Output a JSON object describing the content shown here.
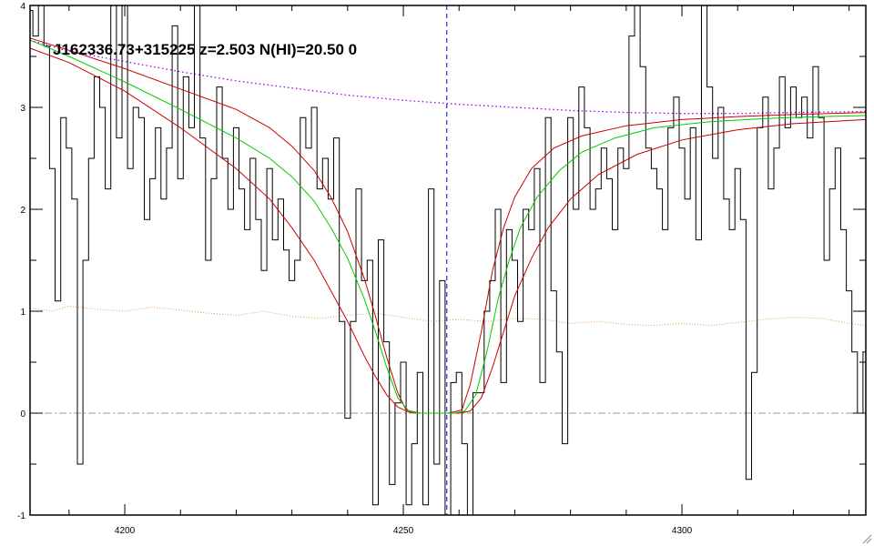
{
  "chart_data": {
    "type": "line",
    "title": "J162336.73+315225 z=2.503 N(HI)=20.50 0",
    "xlabel": "",
    "ylabel": "",
    "xlim": [
      4183,
      4333
    ],
    "ylim": [
      -1,
      4
    ],
    "x_ticks": [
      4200,
      4250,
      4300
    ],
    "y_ticks": [
      -1,
      0,
      1,
      2,
      3,
      4
    ],
    "grid": false,
    "line_center": 4257.8,
    "zero_level": 0,
    "flux_steps": [
      [
        4183.0,
        3.95
      ],
      [
        4184.0,
        3.7
      ],
      [
        4185.0,
        4.0
      ],
      [
        4186.0,
        3.6
      ],
      [
        4187.0,
        2.4
      ],
      [
        4188.0,
        1.1
      ],
      [
        4189.0,
        2.9
      ],
      [
        4190.0,
        2.6
      ],
      [
        4191.0,
        2.1
      ],
      [
        4192.0,
        -0.5
      ],
      [
        4193.0,
        1.5
      ],
      [
        4194.0,
        2.5
      ],
      [
        4195.0,
        3.3
      ],
      [
        4196.0,
        3.0
      ],
      [
        4197.0,
        2.2
      ],
      [
        4198.0,
        4.0
      ],
      [
        4199.0,
        2.7
      ],
      [
        4200.0,
        4.0
      ],
      [
        4201.0,
        2.4
      ],
      [
        4202.0,
        3.0
      ],
      [
        4203.0,
        2.9
      ],
      [
        4204.0,
        1.9
      ],
      [
        4205.0,
        2.3
      ],
      [
        4206.0,
        2.8
      ],
      [
        4207.0,
        2.1
      ],
      [
        4208.0,
        2.6
      ],
      [
        4209.0,
        3.8
      ],
      [
        4210.0,
        2.3
      ],
      [
        4211.0,
        3.3
      ],
      [
        4212.0,
        2.8
      ],
      [
        4213.0,
        4.0
      ],
      [
        4214.0,
        2.7
      ],
      [
        4215.0,
        1.5
      ],
      [
        4216.0,
        2.3
      ],
      [
        4217.0,
        3.2
      ],
      [
        4218.0,
        2.5
      ],
      [
        4219.0,
        2.0
      ],
      [
        4220.0,
        2.8
      ],
      [
        4221.0,
        2.2
      ],
      [
        4222.0,
        1.8
      ],
      [
        4223.0,
        2.5
      ],
      [
        4224.0,
        1.9
      ],
      [
        4225.0,
        1.4
      ],
      [
        4226.0,
        2.4
      ],
      [
        4227.0,
        1.7
      ],
      [
        4228.0,
        2.1
      ],
      [
        4229.0,
        1.6
      ],
      [
        4230.0,
        1.3
      ],
      [
        4231.0,
        1.5
      ],
      [
        4232.0,
        2.9
      ],
      [
        4233.0,
        2.6
      ],
      [
        4234.0,
        3.0
      ],
      [
        4235.0,
        2.2
      ],
      [
        4236.0,
        2.5
      ],
      [
        4237.0,
        2.1
      ],
      [
        4238.0,
        2.7
      ],
      [
        4239.0,
        0.9
      ],
      [
        4240.0,
        -0.05
      ],
      [
        4241.0,
        0.9
      ],
      [
        4242.0,
        2.2
      ],
      [
        4243.0,
        1.3
      ],
      [
        4244.0,
        1.5
      ],
      [
        4245.0,
        -0.9
      ],
      [
        4246.0,
        1.7
      ],
      [
        4247.0,
        0.7
      ],
      [
        4248.0,
        -0.7
      ],
      [
        4249.0,
        0.1
      ],
      [
        4250.0,
        0.5
      ],
      [
        4251.0,
        -0.9
      ],
      [
        4252.0,
        -0.3
      ],
      [
        4253.0,
        0.4
      ],
      [
        4254.0,
        -0.9
      ],
      [
        4255.0,
        2.2
      ],
      [
        4256.0,
        -0.5
      ],
      [
        4257.0,
        1.3
      ],
      [
        4258.0,
        -1.0
      ],
      [
        4259.0,
        0.3
      ],
      [
        4260.0,
        0.4
      ],
      [
        4261.0,
        -0.3
      ],
      [
        4262.0,
        -1.0
      ],
      [
        4263.0,
        0.2
      ],
      [
        4264.0,
        0.2
      ],
      [
        4265.0,
        1.0
      ],
      [
        4266.0,
        1.3
      ],
      [
        4267.0,
        2.0
      ],
      [
        4268.0,
        0.3
      ],
      [
        4269.0,
        1.8
      ],
      [
        4270.0,
        1.5
      ],
      [
        4271.0,
        0.9
      ],
      [
        4272.0,
        2.0
      ],
      [
        4273.0,
        1.8
      ],
      [
        4274.0,
        2.4
      ],
      [
        4275.0,
        0.3
      ],
      [
        4276.0,
        2.9
      ],
      [
        4277.0,
        1.2
      ],
      [
        4278.0,
        0.6
      ],
      [
        4279.0,
        -0.3
      ],
      [
        4280.0,
        2.9
      ],
      [
        4281.0,
        2.0
      ],
      [
        4282.0,
        3.2
      ],
      [
        4283.0,
        2.8
      ],
      [
        4284.0,
        2.0
      ],
      [
        4285.0,
        2.2
      ],
      [
        4286.0,
        2.6
      ],
      [
        4287.0,
        2.3
      ],
      [
        4288.0,
        1.8
      ],
      [
        4289.0,
        2.6
      ],
      [
        4290.0,
        2.4
      ],
      [
        4291.0,
        3.7
      ],
      [
        4292.0,
        4.0
      ],
      [
        4293.0,
        3.4
      ],
      [
        4294.0,
        2.6
      ],
      [
        4295.0,
        2.4
      ],
      [
        4296.0,
        2.2
      ],
      [
        4297.0,
        1.8
      ],
      [
        4298.0,
        2.8
      ],
      [
        4299.0,
        3.1
      ],
      [
        4300.0,
        2.6
      ],
      [
        4301.0,
        2.1
      ],
      [
        4302.0,
        2.8
      ],
      [
        4303.0,
        1.7
      ],
      [
        4304.0,
        4.0
      ],
      [
        4305.0,
        3.2
      ],
      [
        4306.0,
        2.5
      ],
      [
        4307.0,
        3.0
      ],
      [
        4308.0,
        2.1
      ],
      [
        4309.0,
        1.8
      ],
      [
        4310.0,
        2.4
      ],
      [
        4311.0,
        1.9
      ],
      [
        4312.0,
        -0.65
      ],
      [
        4313.0,
        0.4
      ],
      [
        4314.0,
        2.8
      ],
      [
        4315.0,
        3.1
      ],
      [
        4316.0,
        2.2
      ],
      [
        4317.0,
        2.6
      ],
      [
        4318.0,
        3.3
      ],
      [
        4319.0,
        2.8
      ],
      [
        4320.0,
        3.2
      ],
      [
        4321.0,
        2.9
      ],
      [
        4322.0,
        3.1
      ],
      [
        4323.0,
        2.7
      ],
      [
        4324.0,
        3.4
      ],
      [
        4325.0,
        2.9
      ],
      [
        4326.0,
        1.5
      ],
      [
        4327.0,
        2.2
      ],
      [
        4328.0,
        2.6
      ],
      [
        4329.0,
        1.8
      ],
      [
        4330.0,
        1.2
      ],
      [
        4331.0,
        0.6
      ],
      [
        4332.0,
        0.0
      ],
      [
        4333.0,
        0.6
      ]
    ],
    "model_best": [
      [
        4183,
        3.66
      ],
      [
        4190,
        3.5
      ],
      [
        4200,
        3.25
      ],
      [
        4210,
        2.98
      ],
      [
        4220,
        2.7
      ],
      [
        4226,
        2.5
      ],
      [
        4230,
        2.32
      ],
      [
        4234,
        2.08
      ],
      [
        4237,
        1.82
      ],
      [
        4240,
        1.52
      ],
      [
        4243,
        1.12
      ],
      [
        4245,
        0.8
      ],
      [
        4247,
        0.45
      ],
      [
        4249,
        0.15
      ],
      [
        4251,
        0.02
      ],
      [
        4253,
        0.0
      ],
      [
        4256,
        0.0
      ],
      [
        4259,
        0.0
      ],
      [
        4261,
        0.02
      ],
      [
        4263,
        0.18
      ],
      [
        4265,
        0.6
      ],
      [
        4267,
        1.12
      ],
      [
        4269,
        1.5
      ],
      [
        4271,
        1.82
      ],
      [
        4274,
        2.12
      ],
      [
        4278,
        2.38
      ],
      [
        4282,
        2.56
      ],
      [
        4288,
        2.7
      ],
      [
        4295,
        2.8
      ],
      [
        4305,
        2.86
      ],
      [
        4315,
        2.89
      ],
      [
        4325,
        2.91
      ],
      [
        4333,
        2.92
      ]
    ],
    "model_upper": [
      [
        4183,
        3.68
      ],
      [
        4190,
        3.56
      ],
      [
        4200,
        3.38
      ],
      [
        4210,
        3.18
      ],
      [
        4220,
        2.98
      ],
      [
        4226,
        2.8
      ],
      [
        4230,
        2.62
      ],
      [
        4234,
        2.38
      ],
      [
        4237,
        2.12
      ],
      [
        4240,
        1.78
      ],
      [
        4243,
        1.32
      ],
      [
        4245,
        0.95
      ],
      [
        4247,
        0.55
      ],
      [
        4249,
        0.2
      ],
      [
        4250.5,
        0.03
      ],
      [
        4253,
        0.0
      ],
      [
        4258,
        0.0
      ],
      [
        4260.5,
        0.03
      ],
      [
        4262,
        0.28
      ],
      [
        4264,
        0.8
      ],
      [
        4266,
        1.4
      ],
      [
        4268,
        1.82
      ],
      [
        4270,
        2.12
      ],
      [
        4273,
        2.4
      ],
      [
        4277,
        2.6
      ],
      [
        4282,
        2.72
      ],
      [
        4290,
        2.82
      ],
      [
        4300,
        2.88
      ],
      [
        4310,
        2.91
      ],
      [
        4320,
        2.93
      ],
      [
        4333,
        2.95
      ]
    ],
    "model_lower": [
      [
        4183,
        3.58
      ],
      [
        4190,
        3.44
      ],
      [
        4200,
        3.16
      ],
      [
        4210,
        2.8
      ],
      [
        4220,
        2.4
      ],
      [
        4226,
        2.1
      ],
      [
        4230,
        1.82
      ],
      [
        4234,
        1.5
      ],
      [
        4237,
        1.2
      ],
      [
        4240,
        0.9
      ],
      [
        4243,
        0.56
      ],
      [
        4245,
        0.36
      ],
      [
        4247,
        0.18
      ],
      [
        4249,
        0.06
      ],
      [
        4251,
        0.01
      ],
      [
        4253,
        0.0
      ],
      [
        4260,
        0.0
      ],
      [
        4262,
        0.02
      ],
      [
        4264,
        0.15
      ],
      [
        4266,
        0.45
      ],
      [
        4268,
        0.8
      ],
      [
        4270,
        1.15
      ],
      [
        4273,
        1.52
      ],
      [
        4276,
        1.82
      ],
      [
        4280,
        2.1
      ],
      [
        4285,
        2.34
      ],
      [
        4292,
        2.54
      ],
      [
        4300,
        2.68
      ],
      [
        4310,
        2.78
      ],
      [
        4320,
        2.84
      ],
      [
        4333,
        2.88
      ]
    ],
    "continuum": [
      [
        4183,
        3.66
      ],
      [
        4190,
        3.55
      ],
      [
        4200,
        3.45
      ],
      [
        4210,
        3.35
      ],
      [
        4220,
        3.26
      ],
      [
        4230,
        3.19
      ],
      [
        4240,
        3.12
      ],
      [
        4250,
        3.07
      ],
      [
        4260,
        3.03
      ],
      [
        4270,
        3.0
      ],
      [
        4280,
        2.97
      ],
      [
        4290,
        2.95
      ],
      [
        4300,
        2.94
      ],
      [
        4310,
        2.94
      ],
      [
        4320,
        2.95
      ],
      [
        4333,
        2.96
      ]
    ],
    "error_level": [
      [
        4183,
        1.03
      ],
      [
        4187,
        1.0
      ],
      [
        4190,
        1.05
      ],
      [
        4195,
        1.02
      ],
      [
        4200,
        1.0
      ],
      [
        4205,
        1.04
      ],
      [
        4210,
        1.01
      ],
      [
        4215,
        0.98
      ],
      [
        4220,
        0.96
      ],
      [
        4225,
        1.0
      ],
      [
        4230,
        0.95
      ],
      [
        4235,
        0.93
      ],
      [
        4240,
        0.96
      ],
      [
        4245,
        0.98
      ],
      [
        4250,
        0.94
      ],
      [
        4255,
        0.9
      ],
      [
        4260,
        0.92
      ],
      [
        4265,
        0.9
      ],
      [
        4270,
        0.93
      ],
      [
        4275,
        0.92
      ],
      [
        4280,
        0.88
      ],
      [
        4285,
        0.9
      ],
      [
        4290,
        0.87
      ],
      [
        4295,
        0.86
      ],
      [
        4300,
        0.88
      ],
      [
        4305,
        0.86
      ],
      [
        4310,
        0.89
      ],
      [
        4315,
        0.92
      ],
      [
        4320,
        0.94
      ],
      [
        4325,
        0.93
      ],
      [
        4330,
        0.88
      ],
      [
        4333,
        0.86
      ]
    ],
    "colors": {
      "flux": "#000000",
      "model_best": "#00cc00",
      "model_bounds": "#cc0000",
      "continuum": "#9900ee",
      "error": "#ee9944",
      "line_center": "#0000cc",
      "zero_line": "#999999",
      "axes": "#000000"
    }
  }
}
